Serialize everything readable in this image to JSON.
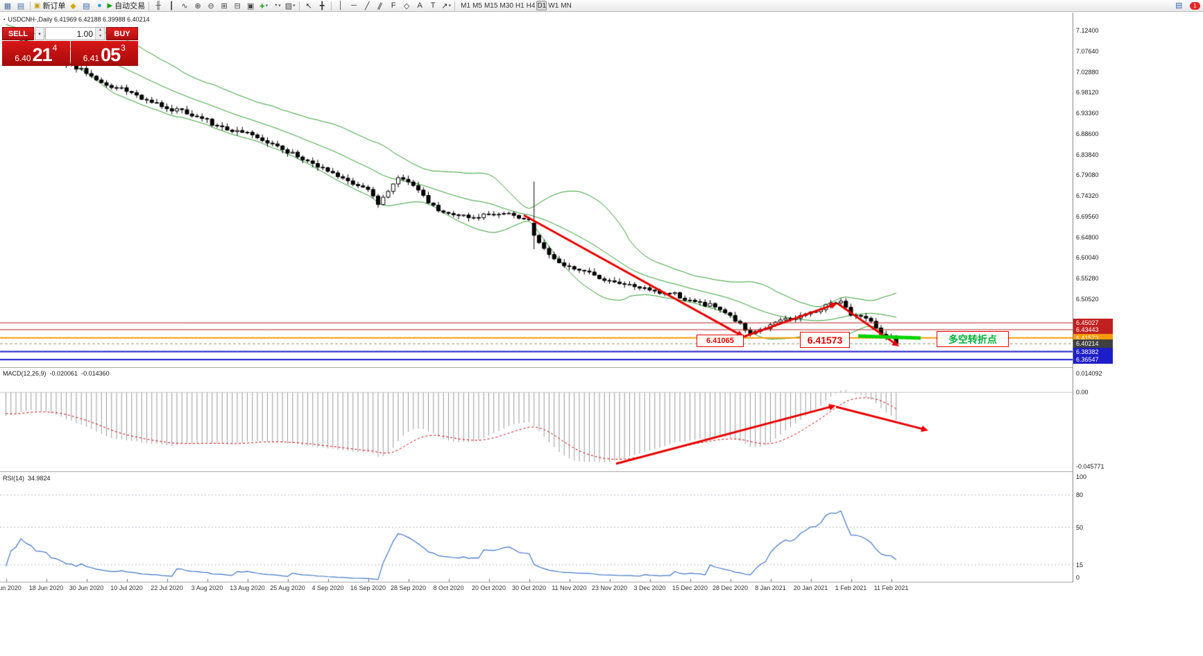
{
  "window": {
    "title_overlay": "USDCNH-,Daily 6.41969 6.42188 6.39988 6.40214"
  },
  "toolbar": {
    "groups": [
      {
        "items": [
          {
            "n": "new-chart-icon",
            "g": "▦",
            "c": "#4a6fa5"
          },
          {
            "n": "chart-profiles-icon",
            "g": "▤",
            "c": "#4a6fa5"
          }
        ]
      },
      {
        "items": [
          {
            "n": "new-order-button",
            "g": "▣",
            "c": "#c9a117",
            "label": "新订单"
          },
          {
            "n": "chart-wizard-icon",
            "g": "◆",
            "c": "#d4aa00"
          },
          {
            "n": "market-watch-icon",
            "g": "▤",
            "c": "#3a66b0"
          },
          {
            "n": "navigator-icon",
            "g": "●",
            "c": "#2a9fd0"
          },
          {
            "n": "autotrading-button",
            "g": "▶",
            "c": "#18a018",
            "label": "自动交易"
          }
        ]
      },
      {
        "items": [
          {
            "n": "bar-chart-icon",
            "g": "╫",
            "c": "#444"
          },
          {
            "n": "candlestick-chart-icon",
            "g": "┃",
            "c": "#444"
          },
          {
            "n": "line-chart-icon",
            "g": "∿",
            "c": "#444"
          },
          {
            "n": "zoom-in-icon",
            "g": "⊕",
            "c": "#444"
          },
          {
            "n": "zoom-out-icon",
            "g": "⊖",
            "c": "#444"
          },
          {
            "n": "tile-windows-icon",
            "g": "⊞",
            "c": "#444"
          },
          {
            "n": "cascade-windows-icon",
            "g": "⊟",
            "c": "#444"
          },
          {
            "n": "arrange-windows-icon",
            "g": "▣",
            "c": "#444"
          },
          {
            "n": "indicators-icon",
            "g": "+",
            "c": "#0c9a0c",
            "dd": true
          },
          {
            "n": "periods-icon",
            "g": "◔",
            "c": "#444",
            "dd": true
          },
          {
            "n": "templates-icon",
            "g": "▨",
            "c": "#444",
            "dd": true
          }
        ]
      },
      {
        "items": [
          {
            "n": "cursor-icon",
            "g": "↖",
            "c": "#333"
          },
          {
            "n": "crosshair-icon",
            "g": "╋",
            "c": "#333"
          }
        ]
      },
      {
        "items": [
          {
            "n": "vertical-line-icon",
            "g": "│",
            "c": "#333"
          },
          {
            "n": "horizontal-line-icon",
            "g": "─",
            "c": "#333"
          },
          {
            "n": "trendline-icon",
            "g": "╱",
            "c": "#333"
          },
          {
            "n": "channel-icon",
            "g": "∥",
            "c": "#333",
            "rot": 25
          },
          {
            "n": "fibonacci-icon",
            "g": "F",
            "c": "#333"
          },
          {
            "n": "shapes-icon",
            "g": "◇",
            "c": "#333"
          },
          {
            "n": "text-icon",
            "g": "A",
            "c": "#333"
          },
          {
            "n": "text-label-icon",
            "g": "T",
            "c": "#333"
          },
          {
            "n": "arrows-icon",
            "g": "↗",
            "c": "#333",
            "dd": true
          }
        ]
      }
    ],
    "timeframes": [
      "M1",
      "M5",
      "M15",
      "M30",
      "H1",
      "H4",
      "D1",
      "W1",
      "MN"
    ],
    "active_timeframe": "D1",
    "badge": "1"
  },
  "trade_panel": {
    "sell_label": "SELL",
    "buy_label": "BUY",
    "volume": "1.00",
    "sell_price": {
      "big": "6.40",
      "pips": "21",
      "sup": "4"
    },
    "buy_price": {
      "big": "6.41",
      "pips": "05",
      "sup": "3"
    }
  },
  "price_scale": {
    "ticks": [
      "7.12400",
      "7.07640",
      "7.02880",
      "6.98120",
      "6.93360",
      "6.88600",
      "6.83840",
      "6.79080",
      "6.74320",
      "6.69560",
      "6.64800",
      "6.60040",
      "6.55280",
      "6.50520"
    ],
    "tags": [
      {
        "text": "6.45027",
        "bg": "#c02020"
      },
      {
        "text": "6.43443",
        "bg": "#c02020"
      },
      {
        "text": "6.41573",
        "bg": "#f59a00"
      },
      {
        "text": "6.40214",
        "bg": "#404040"
      },
      {
        "text": "6.38382",
        "bg": "#1e1ec8"
      },
      {
        "text": "6.36547",
        "bg": "#1e1ec8"
      }
    ]
  },
  "macd": {
    "label": "MACD(12,26,9)",
    "main": "-0.020061",
    "signal": "-0.014360",
    "axis": [
      "0.014092",
      "0.00",
      "-0.045771"
    ]
  },
  "rsi": {
    "label": "RSI(14)",
    "value": "34.9824",
    "axis": [
      "100",
      "80",
      "50",
      "15",
      "0"
    ],
    "levels": [
      80,
      50,
      15
    ]
  },
  "annotations": {
    "low_price": "6.41065",
    "level_price": "6.41573",
    "note": "多空转折点"
  },
  "chart_data": {
    "type": "candlestick",
    "symbol": "USDCNH",
    "timeframe": "Daily",
    "ohlc_current": {
      "open": 6.41969,
      "high": 6.42188,
      "low": 6.39988,
      "close": 6.40214
    },
    "bollinger": {
      "period": 20,
      "deviation": 2
    },
    "macd_params": {
      "fast": 12,
      "slow": 26,
      "signal": 9,
      "axis_max": 0.014092,
      "axis_min": -0.045771
    },
    "rsi_params": {
      "period": 14,
      "current": 34.9824
    },
    "levels": [
      {
        "price": 6.45027,
        "color": "#b22020",
        "w": 1
      },
      {
        "price": 6.43443,
        "color": "#b22020",
        "w": 1
      },
      {
        "price": 6.41573,
        "color": "#f59a00",
        "w": 2
      },
      {
        "price": 6.40214,
        "color": "#909090",
        "w": 1,
        "dash": true
      },
      {
        "price": 6.38382,
        "color": "#1e1ec8",
        "w": 2
      },
      {
        "price": 6.36547,
        "color": "#1e1ec8",
        "w": 2
      }
    ],
    "candles_count": 178,
    "warmup": 30,
    "close_anchors": [
      [
        -30,
        7.15
      ],
      [
        -20,
        7.134
      ],
      [
        -10,
        7.108
      ],
      [
        0,
        7.086
      ],
      [
        4,
        7.098
      ],
      [
        8,
        7.072
      ],
      [
        12,
        7.05
      ],
      [
        16,
        7.028
      ],
      [
        20,
        6.996
      ],
      [
        24,
        6.988
      ],
      [
        28,
        6.962
      ],
      [
        32,
        6.946
      ],
      [
        36,
        6.932
      ],
      [
        40,
        6.916
      ],
      [
        44,
        6.893
      ],
      [
        48,
        6.888
      ],
      [
        52,
        6.868
      ],
      [
        56,
        6.846
      ],
      [
        60,
        6.822
      ],
      [
        64,
        6.8
      ],
      [
        68,
        6.778
      ],
      [
        72,
        6.758
      ],
      [
        74,
        6.723
      ],
      [
        78,
        6.784
      ],
      [
        82,
        6.76
      ],
      [
        84,
        6.726
      ],
      [
        88,
        6.702
      ],
      [
        92,
        6.692
      ],
      [
        96,
        6.7
      ],
      [
        100,
        6.702
      ],
      [
        104,
        6.686
      ],
      [
        106,
        6.636
      ],
      [
        108,
        6.604
      ],
      [
        112,
        6.578
      ],
      [
        116,
        6.564
      ],
      [
        120,
        6.546
      ],
      [
        124,
        6.536
      ],
      [
        128,
        6.526
      ],
      [
        132,
        6.518
      ],
      [
        136,
        6.502
      ],
      [
        140,
        6.49
      ],
      [
        144,
        6.468
      ],
      [
        148,
        6.424
      ],
      [
        150,
        6.436
      ],
      [
        152,
        6.448
      ],
      [
        156,
        6.458
      ],
      [
        160,
        6.474
      ],
      [
        164,
        6.492
      ],
      [
        166,
        6.5
      ],
      [
        168,
        6.472
      ],
      [
        170,
        6.466
      ],
      [
        172,
        6.455
      ],
      [
        174,
        6.428
      ],
      [
        176,
        6.412
      ],
      [
        177,
        6.402
      ]
    ],
    "special_candles": {
      "105": [
        6.68,
        6.776,
        6.62,
        6.652
      ],
      "177": [
        6.41969,
        6.42188,
        6.39988,
        6.40214
      ]
    },
    "dates": [
      "4 Jun 2020",
      "18 Jun 2020",
      "30 Jun 2020",
      "10 Jul 2020",
      "22 Jul 2020",
      "3 Aug 2020",
      "13 Aug 2020",
      "25 Aug 2020",
      "4 Sep 2020",
      "16 Sep 2020",
      "28 Sep 2020",
      "8 Oct 2020",
      "20 Oct 2020",
      "30 Oct 2020",
      "11 Nov 2020",
      "23 Nov 2020",
      "3 Dec 2020",
      "15 Dec 2020",
      "28 Dec 2020",
      "8 Jan 2021",
      "20 Jan 2021",
      "1 Feb 2021",
      "11 Feb 2021"
    ],
    "dates_step": 8,
    "drawings": {
      "arrow_color": "#e60000",
      "green_color": "#00d300",
      "price_arrows": [
        [
          755,
          292,
          1072,
          467
        ],
        [
          1072,
          467,
          1207,
          419
        ],
        [
          1207,
          419,
          1296,
          481
        ]
      ],
      "macd_arrows": [
        [
          888,
          650,
          1205,
          566
        ],
        [
          1205,
          568,
          1338,
          602
        ]
      ],
      "green_segment": [
        1237,
        466,
        1327,
        469
      ]
    }
  }
}
